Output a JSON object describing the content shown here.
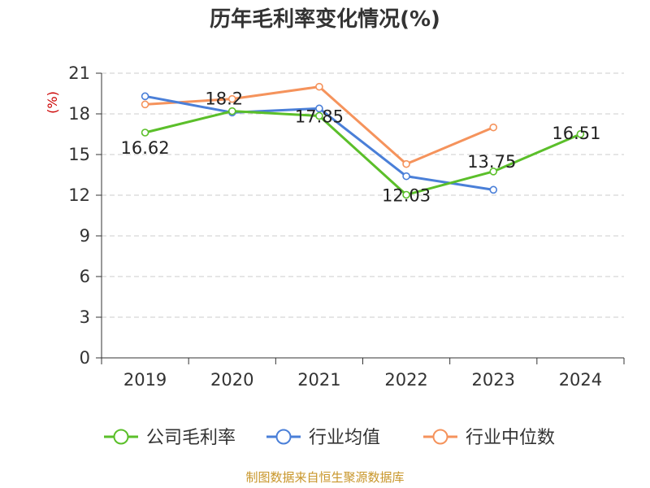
{
  "chart_data": {
    "type": "line",
    "title": "历年毛利率变化情况(%)",
    "ylabel": "(%)",
    "categories": [
      "2019",
      "2020",
      "2021",
      "2022",
      "2023",
      "2024"
    ],
    "ylim": [
      0,
      21
    ],
    "yticks": [
      0,
      3,
      6,
      9,
      12,
      15,
      18,
      21
    ],
    "grid": "horizontal-dashed",
    "legend_position": "bottom",
    "series": [
      {
        "name": "公司毛利率",
        "color": "#5bbf2a",
        "values": [
          16.62,
          18.2,
          17.85,
          12.03,
          13.75,
          16.51
        ],
        "labels": [
          "16.62",
          "18.2",
          "17.85",
          "12.03",
          "13.75",
          "16.51"
        ]
      },
      {
        "name": "行业均值",
        "color": "#4a7fd8",
        "values": [
          19.3,
          18.1,
          18.4,
          13.4,
          12.4,
          null
        ]
      },
      {
        "name": "行业中位数",
        "color": "#f5935c",
        "values": [
          18.7,
          19.1,
          20.0,
          14.3,
          17.0,
          null
        ]
      }
    ]
  },
  "source": "制图数据来自恒生聚源数据库"
}
